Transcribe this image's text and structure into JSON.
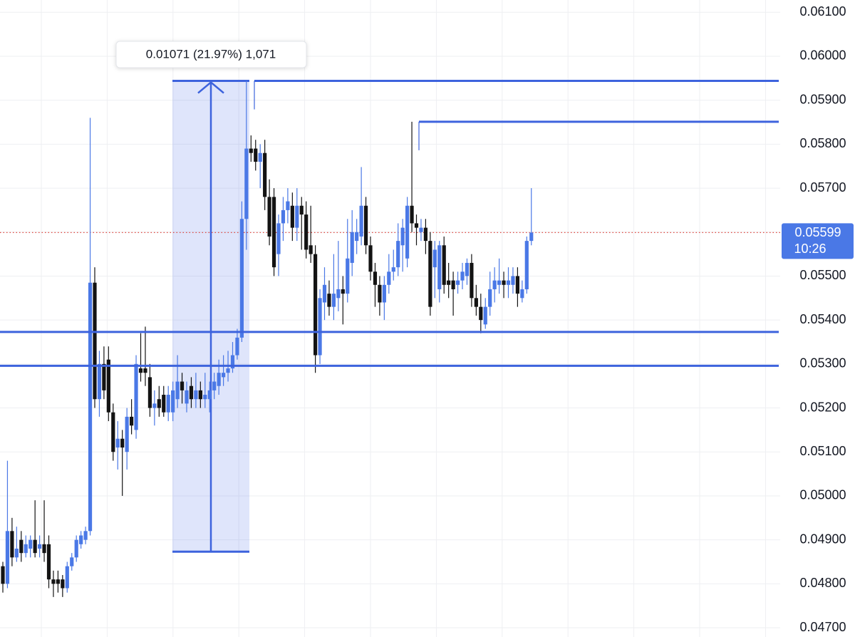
{
  "chart_data": {
    "type": "candlestick",
    "ylim": [
      0.04679,
      0.06128
    ],
    "yticks": [
      {
        "value": 0.061,
        "label": "0.06100"
      },
      {
        "value": 0.06,
        "label": "0.06000"
      },
      {
        "value": 0.059,
        "label": "0.05900"
      },
      {
        "value": 0.058,
        "label": "0.05800"
      },
      {
        "value": 0.057,
        "label": "0.05700"
      },
      {
        "value": 0.056,
        "label": "0.05600"
      },
      {
        "value": 0.055,
        "label": "0.05500"
      },
      {
        "value": 0.054,
        "label": "0.05400"
      },
      {
        "value": 0.053,
        "label": "0.05300"
      },
      {
        "value": 0.052,
        "label": "0.05200"
      },
      {
        "value": 0.051,
        "label": "0.05100"
      },
      {
        "value": 0.05,
        "label": "0.05000"
      },
      {
        "value": 0.049,
        "label": "0.04900"
      },
      {
        "value": 0.048,
        "label": "0.04800"
      },
      {
        "value": 0.047,
        "label": "0.04700"
      }
    ],
    "grid": true,
    "up_color": "#4a78e6",
    "down_color": "#131313",
    "level_color": "#3d63dd",
    "candles": [
      [
        0.0484,
        0.0485,
        0.0478,
        0.048
      ],
      [
        0.048,
        0.0508,
        0.0479,
        0.0492
      ],
      [
        0.0492,
        0.0495,
        0.0484,
        0.0486
      ],
      [
        0.0486,
        0.0493,
        0.0485,
        0.0488
      ],
      [
        0.049,
        0.0492,
        0.0485,
        0.0487
      ],
      [
        0.0487,
        0.0491,
        0.0486,
        0.0489
      ],
      [
        0.0488,
        0.0491,
        0.0486,
        0.049
      ],
      [
        0.049,
        0.0499,
        0.0486,
        0.0487
      ],
      [
        0.0488,
        0.0491,
        0.0486,
        0.0489
      ],
      [
        0.0489,
        0.0499,
        0.0485,
        0.0487
      ],
      [
        0.0489,
        0.0491,
        0.0479,
        0.0481
      ],
      [
        0.0481,
        0.0483,
        0.0477,
        0.048
      ],
      [
        0.0481,
        0.0483,
        0.0478,
        0.048
      ],
      [
        0.0481,
        0.0482,
        0.0477,
        0.0479
      ],
      [
        0.0479,
        0.0485,
        0.0478,
        0.0484
      ],
      [
        0.0484,
        0.0487,
        0.0483,
        0.0486
      ],
      [
        0.0486,
        0.0491,
        0.0485,
        0.049
      ],
      [
        0.0489,
        0.0492,
        0.0488,
        0.0491
      ],
      [
        0.049,
        0.0493,
        0.0489,
        0.0492
      ],
      [
        0.0492,
        0.0586,
        0.0491,
        0.05485
      ],
      [
        0.05485,
        0.0552,
        0.052,
        0.0522
      ],
      [
        0.0522,
        0.0533,
        0.0518,
        0.053
      ],
      [
        0.053,
        0.0534,
        0.0522,
        0.0524
      ],
      [
        0.0531,
        0.0534,
        0.0517,
        0.0519
      ],
      [
        0.0519,
        0.0521,
        0.0508,
        0.051
      ],
      [
        0.0511,
        0.0517,
        0.0506,
        0.0513
      ],
      [
        0.0513,
        0.0515,
        0.05,
        0.0511
      ],
      [
        0.051,
        0.052,
        0.0506,
        0.0518
      ],
      [
        0.0518,
        0.0522,
        0.0514,
        0.0516
      ],
      [
        0.0515,
        0.0532,
        0.0513,
        0.053
      ],
      [
        0.0529,
        0.0537,
        0.0526,
        0.0528
      ],
      [
        0.0529,
        0.05385,
        0.0525,
        0.0528
      ],
      [
        0.0527,
        0.053,
        0.0518,
        0.052
      ],
      [
        0.052,
        0.0524,
        0.0516,
        0.0521
      ],
      [
        0.0522,
        0.0525,
        0.0518,
        0.052
      ],
      [
        0.0523,
        0.0525,
        0.0518,
        0.0519
      ],
      [
        0.0519,
        0.0525,
        0.0517,
        0.0523
      ],
      [
        0.0519,
        0.0526,
        0.0517,
        0.0524
      ],
      [
        0.0522,
        0.0532,
        0.052,
        0.0526
      ],
      [
        0.0526,
        0.0528,
        0.0521,
        0.0524
      ],
      [
        0.0521,
        0.0526,
        0.0519,
        0.0524
      ],
      [
        0.0525,
        0.0527,
        0.052,
        0.0522
      ],
      [
        0.0522,
        0.0528,
        0.052,
        0.0524
      ],
      [
        0.0524,
        0.0526,
        0.052,
        0.0522
      ],
      [
        0.0522,
        0.0528,
        0.052,
        0.0523
      ],
      [
        0.0522,
        0.0526,
        0.0519,
        0.0524
      ],
      [
        0.0524,
        0.0528,
        0.0522,
        0.0526
      ],
      [
        0.0525,
        0.0531,
        0.0523,
        0.0528
      ],
      [
        0.0527,
        0.0532,
        0.0525,
        0.0528
      ],
      [
        0.0528,
        0.0533,
        0.0526,
        0.0529
      ],
      [
        0.0529,
        0.0535,
        0.0528,
        0.0532
      ],
      [
        0.0532,
        0.0538,
        0.0531,
        0.0536
      ],
      [
        0.0536,
        0.0567,
        0.0535,
        0.0563
      ],
      [
        0.0563,
        0.05944,
        0.0556,
        0.0579
      ],
      [
        0.0579,
        0.0582,
        0.0576,
        0.0578
      ],
      [
        0.0579,
        0.0581,
        0.0574,
        0.0576
      ],
      [
        0.0576,
        0.058,
        0.057,
        0.0578
      ],
      [
        0.0578,
        0.0581,
        0.0565,
        0.0568
      ],
      [
        0.0568,
        0.0572,
        0.0557,
        0.0559
      ],
      [
        0.0568,
        0.057,
        0.055,
        0.0552
      ],
      [
        0.0555,
        0.0564,
        0.055,
        0.0562
      ],
      [
        0.0562,
        0.0568,
        0.0558,
        0.0565
      ],
      [
        0.0565,
        0.057,
        0.0562,
        0.0567
      ],
      [
        0.0566,
        0.0569,
        0.0558,
        0.0561
      ],
      [
        0.0561,
        0.057,
        0.0558,
        0.0566
      ],
      [
        0.0566,
        0.0568,
        0.0556,
        0.0564
      ],
      [
        0.0564,
        0.0567,
        0.0554,
        0.0556
      ],
      [
        0.0557,
        0.0566,
        0.0553,
        0.0555
      ],
      [
        0.0555,
        0.0557,
        0.0528,
        0.0532
      ],
      [
        0.0532,
        0.0547,
        0.053,
        0.0545
      ],
      [
        0.0544,
        0.0552,
        0.054,
        0.0548
      ],
      [
        0.0546,
        0.0549,
        0.0541,
        0.0543
      ],
      [
        0.0543,
        0.0555,
        0.054,
        0.0546
      ],
      [
        0.0545,
        0.0558,
        0.0542,
        0.0547
      ],
      [
        0.0547,
        0.055,
        0.0539,
        0.0546
      ],
      [
        0.0546,
        0.0563,
        0.0544,
        0.0554
      ],
      [
        0.0553,
        0.0565,
        0.055,
        0.056
      ],
      [
        0.0558,
        0.0563,
        0.0555,
        0.056
      ],
      [
        0.0559,
        0.05748,
        0.0557,
        0.0566
      ],
      [
        0.0566,
        0.0568,
        0.0555,
        0.0557
      ],
      [
        0.0557,
        0.0559,
        0.0549,
        0.0551
      ],
      [
        0.0551,
        0.0553,
        0.0543,
        0.0548
      ],
      [
        0.0548,
        0.055,
        0.0541,
        0.0544
      ],
      [
        0.0544,
        0.055,
        0.054,
        0.0548
      ],
      [
        0.0548,
        0.0555,
        0.0546,
        0.0551
      ],
      [
        0.0551,
        0.0556,
        0.0549,
        0.0552
      ],
      [
        0.0552,
        0.0562,
        0.055,
        0.0558
      ],
      [
        0.0557,
        0.0563,
        0.0551,
        0.0561
      ],
      [
        0.0554,
        0.0568,
        0.0552,
        0.0566
      ],
      [
        0.0566,
        0.05851,
        0.056,
        0.0562
      ],
      [
        0.0562,
        0.0564,
        0.0557,
        0.0561
      ],
      [
        0.056,
        0.0563,
        0.0558,
        0.0561
      ],
      [
        0.0561,
        0.0563,
        0.0555,
        0.0558
      ],
      [
        0.0558,
        0.056,
        0.0541,
        0.0543
      ],
      [
        0.0552,
        0.0558,
        0.0545,
        0.0556
      ],
      [
        0.0547,
        0.0558,
        0.0544,
        0.0557
      ],
      [
        0.0557,
        0.0559,
        0.0546,
        0.0548
      ],
      [
        0.0549,
        0.0553,
        0.0545,
        0.0548
      ],
      [
        0.0549,
        0.0551,
        0.0541,
        0.0547
      ],
      [
        0.0548,
        0.0551,
        0.0546,
        0.0549
      ],
      [
        0.0549,
        0.0553,
        0.0547,
        0.0551
      ],
      [
        0.055,
        0.0554,
        0.0548,
        0.0553
      ],
      [
        0.0553,
        0.0555,
        0.0543,
        0.0545
      ],
      [
        0.0545,
        0.0548,
        0.0541,
        0.0543
      ],
      [
        0.0543,
        0.0546,
        0.0537,
        0.054
      ],
      [
        0.0539,
        0.0545,
        0.0538,
        0.0543
      ],
      [
        0.0543,
        0.0551,
        0.0541,
        0.0547
      ],
      [
        0.0547,
        0.0552,
        0.0544,
        0.0549
      ],
      [
        0.0548,
        0.0554,
        0.0546,
        0.0549
      ],
      [
        0.0549,
        0.0551,
        0.0545,
        0.0548
      ],
      [
        0.0548,
        0.0552,
        0.0545,
        0.0549
      ],
      [
        0.0548,
        0.0552,
        0.0546,
        0.055
      ],
      [
        0.055,
        0.0552,
        0.0543,
        0.0546
      ],
      [
        0.0545,
        0.0549,
        0.0544,
        0.0547
      ],
      [
        0.0547,
        0.0559,
        0.0546,
        0.0558
      ],
      [
        0.0558,
        0.057,
        0.0557,
        0.05599
      ]
    ],
    "levels": [
      0.05944,
      0.05851,
      0.05373,
      0.05296
    ],
    "measure": {
      "from": 0.04873,
      "to": 0.05944,
      "label": "0.01071 (21.97%) 1,071"
    },
    "last_price": {
      "value": 0.05599,
      "time": "10:26"
    }
  }
}
